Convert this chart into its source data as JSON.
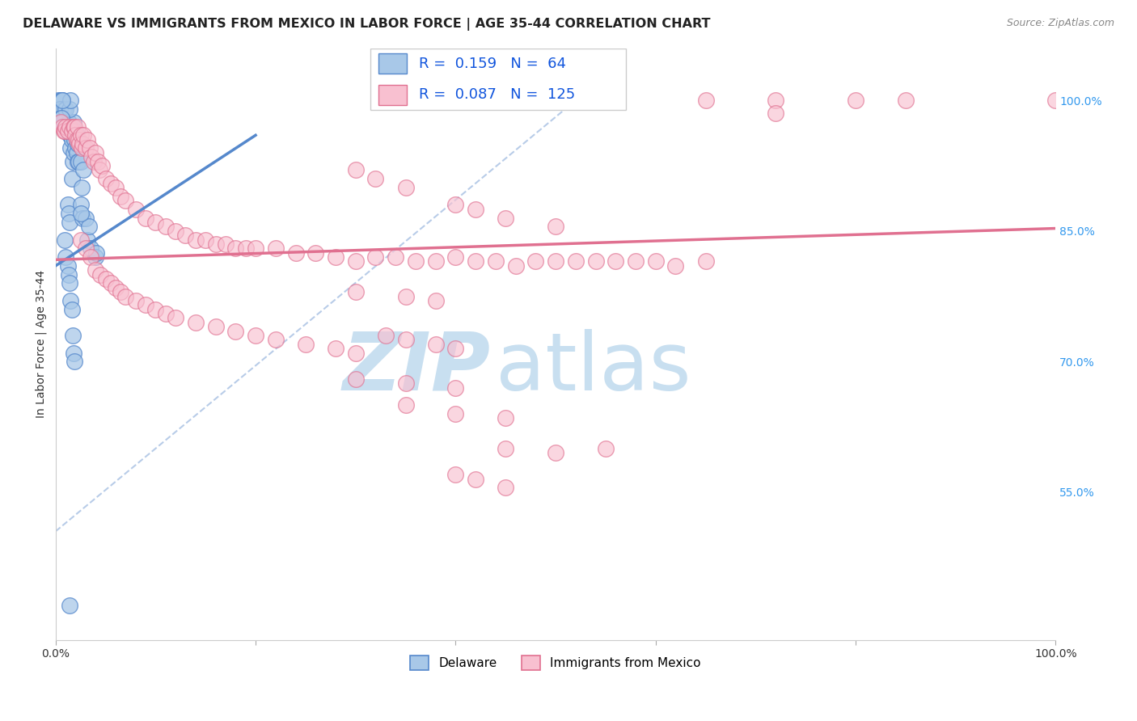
{
  "title": "DELAWARE VS IMMIGRANTS FROM MEXICO IN LABOR FORCE | AGE 35-44 CORRELATION CHART",
  "source": "Source: ZipAtlas.com",
  "ylabel": "In Labor Force | Age 35-44",
  "xlim": [
    0.0,
    1.0
  ],
  "ylim": [
    0.38,
    1.06
  ],
  "ytick_positions": [
    0.55,
    0.7,
    0.85,
    1.0
  ],
  "ytick_labels": [
    "55.0%",
    "70.0%",
    "85.0%",
    "100.0%"
  ],
  "legend_entries": [
    {
      "label": "Delaware",
      "R": "0.159",
      "N": "64",
      "color": "#a8c8e8",
      "edge_color": "#5588cc"
    },
    {
      "label": "Immigrants from Mexico",
      "R": "0.087",
      "N": "125",
      "color": "#f8c0d0",
      "edge_color": "#e07090"
    }
  ],
  "watermark_zip": "ZIP",
  "watermark_atlas": "atlas",
  "watermark_color_zip": "#c8dff0",
  "watermark_color_atlas": "#c8dff0",
  "background_color": "#ffffff",
  "grid_color": "#dddddd",
  "title_fontsize": 11.5,
  "axis_label_fontsize": 10,
  "tick_fontsize": 10,
  "blue_scatter": [
    [
      0.003,
      1.0
    ],
    [
      0.005,
      1.0
    ],
    [
      0.006,
      1.0
    ],
    [
      0.007,
      1.0
    ],
    [
      0.008,
      0.99
    ],
    [
      0.004,
      0.99
    ],
    [
      0.005,
      0.98
    ],
    [
      0.006,
      0.98
    ],
    [
      0.007,
      0.975
    ],
    [
      0.008,
      0.975
    ],
    [
      0.009,
      0.97
    ],
    [
      0.01,
      0.97
    ],
    [
      0.011,
      0.97
    ],
    [
      0.012,
      0.965
    ],
    [
      0.013,
      0.975
    ],
    [
      0.014,
      0.96
    ],
    [
      0.015,
      0.96
    ],
    [
      0.015,
      0.945
    ],
    [
      0.016,
      0.955
    ],
    [
      0.016,
      0.91
    ],
    [
      0.017,
      0.93
    ],
    [
      0.018,
      0.94
    ],
    [
      0.018,
      0.975
    ],
    [
      0.019,
      0.96
    ],
    [
      0.019,
      0.955
    ],
    [
      0.02,
      0.945
    ],
    [
      0.02,
      0.965
    ],
    [
      0.021,
      0.94
    ],
    [
      0.021,
      0.96
    ],
    [
      0.022,
      0.93
    ],
    [
      0.022,
      0.95
    ],
    [
      0.023,
      0.93
    ],
    [
      0.012,
      0.88
    ],
    [
      0.013,
      0.87
    ],
    [
      0.014,
      0.86
    ],
    [
      0.025,
      0.88
    ],
    [
      0.025,
      0.93
    ],
    [
      0.027,
      0.865
    ],
    [
      0.03,
      0.865
    ],
    [
      0.032,
      0.84
    ],
    [
      0.033,
      0.855
    ],
    [
      0.035,
      0.83
    ],
    [
      0.04,
      0.82
    ],
    [
      0.041,
      0.825
    ],
    [
      0.025,
      0.87
    ],
    [
      0.026,
      0.9
    ],
    [
      0.028,
      0.92
    ],
    [
      0.01,
      0.99
    ],
    [
      0.014,
      0.99
    ],
    [
      0.015,
      1.0
    ],
    [
      0.007,
      1.0
    ],
    [
      0.006,
      0.98
    ],
    [
      0.009,
      0.84
    ],
    [
      0.01,
      0.82
    ],
    [
      0.012,
      0.81
    ],
    [
      0.013,
      0.8
    ],
    [
      0.014,
      0.79
    ],
    [
      0.015,
      0.77
    ],
    [
      0.016,
      0.76
    ],
    [
      0.017,
      0.73
    ],
    [
      0.018,
      0.71
    ],
    [
      0.019,
      0.7
    ],
    [
      0.014,
      0.42
    ]
  ],
  "pink_scatter": [
    [
      0.005,
      0.975
    ],
    [
      0.007,
      0.97
    ],
    [
      0.008,
      0.965
    ],
    [
      0.009,
      0.965
    ],
    [
      0.01,
      0.97
    ],
    [
      0.012,
      0.965
    ],
    [
      0.014,
      0.97
    ],
    [
      0.016,
      0.965
    ],
    [
      0.018,
      0.97
    ],
    [
      0.019,
      0.97
    ],
    [
      0.02,
      0.96
    ],
    [
      0.021,
      0.955
    ],
    [
      0.022,
      0.97
    ],
    [
      0.023,
      0.955
    ],
    [
      0.024,
      0.95
    ],
    [
      0.025,
      0.96
    ],
    [
      0.026,
      0.945
    ],
    [
      0.027,
      0.95
    ],
    [
      0.028,
      0.96
    ],
    [
      0.03,
      0.945
    ],
    [
      0.032,
      0.955
    ],
    [
      0.034,
      0.945
    ],
    [
      0.036,
      0.935
    ],
    [
      0.038,
      0.93
    ],
    [
      0.04,
      0.94
    ],
    [
      0.042,
      0.93
    ],
    [
      0.044,
      0.92
    ],
    [
      0.046,
      0.925
    ],
    [
      0.05,
      0.91
    ],
    [
      0.055,
      0.905
    ],
    [
      0.06,
      0.9
    ],
    [
      0.065,
      0.89
    ],
    [
      0.07,
      0.885
    ],
    [
      0.08,
      0.875
    ],
    [
      0.09,
      0.865
    ],
    [
      0.1,
      0.86
    ],
    [
      0.11,
      0.855
    ],
    [
      0.12,
      0.85
    ],
    [
      0.13,
      0.845
    ],
    [
      0.14,
      0.84
    ],
    [
      0.15,
      0.84
    ],
    [
      0.16,
      0.835
    ],
    [
      0.17,
      0.835
    ],
    [
      0.18,
      0.83
    ],
    [
      0.19,
      0.83
    ],
    [
      0.2,
      0.83
    ],
    [
      0.22,
      0.83
    ],
    [
      0.24,
      0.825
    ],
    [
      0.26,
      0.825
    ],
    [
      0.28,
      0.82
    ],
    [
      0.3,
      0.815
    ],
    [
      0.32,
      0.82
    ],
    [
      0.34,
      0.82
    ],
    [
      0.36,
      0.815
    ],
    [
      0.38,
      0.815
    ],
    [
      0.4,
      0.82
    ],
    [
      0.42,
      0.815
    ],
    [
      0.44,
      0.815
    ],
    [
      0.46,
      0.81
    ],
    [
      0.48,
      0.815
    ],
    [
      0.5,
      0.815
    ],
    [
      0.52,
      0.815
    ],
    [
      0.54,
      0.815
    ],
    [
      0.56,
      0.815
    ],
    [
      0.58,
      0.815
    ],
    [
      0.6,
      0.815
    ],
    [
      0.62,
      0.81
    ],
    [
      0.65,
      0.815
    ],
    [
      0.025,
      0.84
    ],
    [
      0.03,
      0.83
    ],
    [
      0.035,
      0.82
    ],
    [
      0.04,
      0.805
    ],
    [
      0.045,
      0.8
    ],
    [
      0.05,
      0.795
    ],
    [
      0.055,
      0.79
    ],
    [
      0.06,
      0.785
    ],
    [
      0.065,
      0.78
    ],
    [
      0.07,
      0.775
    ],
    [
      0.08,
      0.77
    ],
    [
      0.09,
      0.765
    ],
    [
      0.1,
      0.76
    ],
    [
      0.11,
      0.755
    ],
    [
      0.12,
      0.75
    ],
    [
      0.14,
      0.745
    ],
    [
      0.16,
      0.74
    ],
    [
      0.18,
      0.735
    ],
    [
      0.2,
      0.73
    ],
    [
      0.22,
      0.725
    ],
    [
      0.25,
      0.72
    ],
    [
      0.28,
      0.715
    ],
    [
      0.3,
      0.71
    ],
    [
      0.33,
      0.73
    ],
    [
      0.35,
      0.725
    ],
    [
      0.38,
      0.72
    ],
    [
      0.4,
      0.715
    ],
    [
      0.3,
      0.92
    ],
    [
      0.32,
      0.91
    ],
    [
      0.35,
      0.9
    ],
    [
      0.4,
      0.88
    ],
    [
      0.42,
      0.875
    ],
    [
      0.45,
      0.865
    ],
    [
      0.5,
      0.855
    ],
    [
      0.3,
      0.78
    ],
    [
      0.35,
      0.775
    ],
    [
      0.38,
      0.77
    ],
    [
      0.3,
      0.68
    ],
    [
      0.35,
      0.675
    ],
    [
      0.4,
      0.67
    ],
    [
      0.35,
      0.65
    ],
    [
      0.4,
      0.64
    ],
    [
      0.45,
      0.635
    ],
    [
      0.45,
      0.6
    ],
    [
      0.5,
      0.595
    ],
    [
      0.55,
      0.6
    ],
    [
      0.4,
      0.57
    ],
    [
      0.42,
      0.565
    ],
    [
      0.45,
      0.555
    ],
    [
      0.65,
      1.0
    ],
    [
      0.72,
      1.0
    ],
    [
      0.8,
      1.0
    ],
    [
      0.85,
      1.0
    ],
    [
      0.72,
      0.985
    ],
    [
      1.0,
      1.0
    ]
  ],
  "blue_trendline": {
    "x_start": 0.0,
    "y_start": 0.81,
    "x_end": 0.2,
    "y_end": 0.96
  },
  "pink_trendline": {
    "x_start": 0.0,
    "y_start": 0.817,
    "x_end": 1.0,
    "y_end": 0.853
  },
  "diag_line": {
    "x_start": 0.0,
    "y_start": 0.505,
    "x_end": 0.52,
    "y_end": 1.0
  }
}
